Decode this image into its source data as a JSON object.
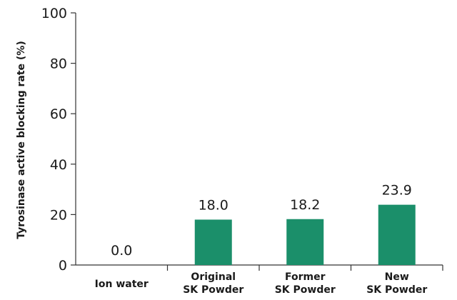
{
  "chart_data": {
    "type": "bar",
    "categories": [
      [
        "Ion water"
      ],
      [
        "Original",
        "SK Powder"
      ],
      [
        "Former",
        "SK Powder"
      ],
      [
        "New",
        "SK Powder"
      ]
    ],
    "values": [
      0.0,
      18.0,
      18.2,
      23.9
    ],
    "data_labels": [
      "0.0",
      "18.0",
      "18.2",
      "23.9"
    ],
    "ylabel": "Tyrosinase active blocking rate (%)",
    "xlabel": "",
    "title": "",
    "ylim": [
      0,
      100
    ],
    "yticks": [
      0,
      20,
      40,
      60,
      80,
      100
    ],
    "grid": false,
    "legend": "none",
    "bar_color": "#1b8f6a"
  }
}
